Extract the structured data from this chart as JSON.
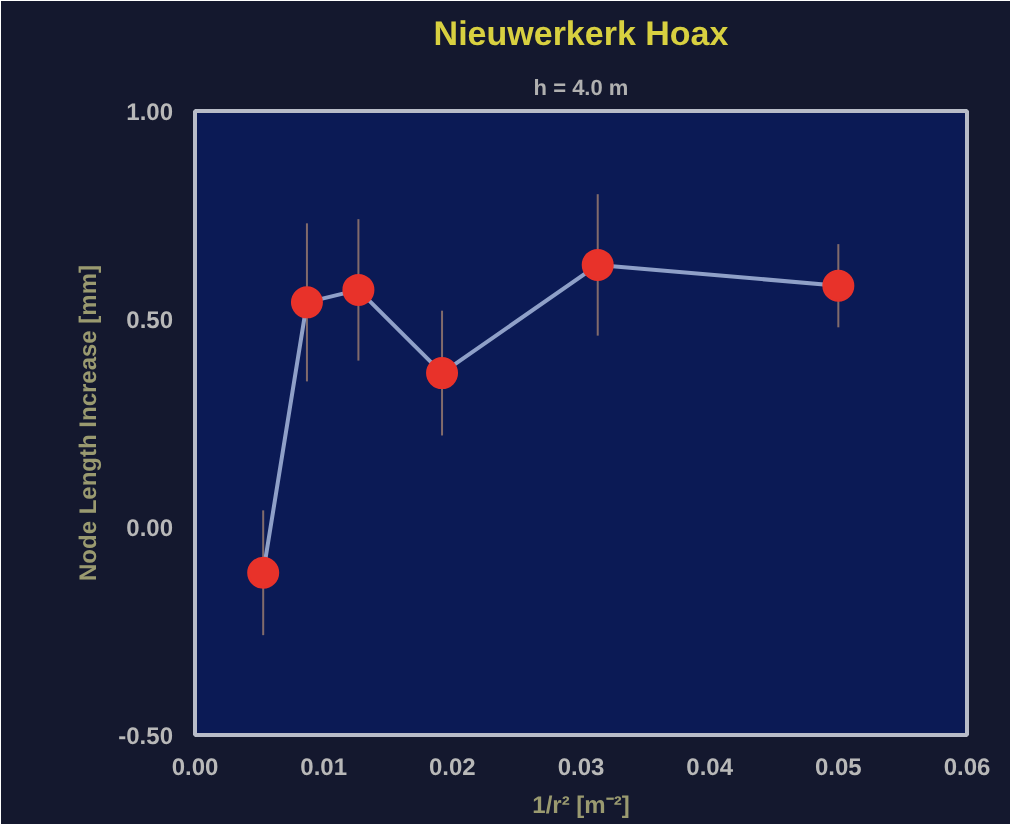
{
  "chart_data": {
    "type": "line",
    "title": "Nieuwerkerk Hoax",
    "subtitle": "h = 4.0 m",
    "xlabel": "1/r² [m⁻²]",
    "ylabel": "Node Length Increase [mm]",
    "x": [
      0.0053,
      0.0087,
      0.0127,
      0.0192,
      0.0313,
      0.05
    ],
    "series": [
      {
        "color": "#e8322a",
        "values": [
          -0.11,
          0.54,
          0.57,
          0.37,
          0.63,
          0.58
        ],
        "errors": [
          0.15,
          0.19,
          0.17,
          0.15,
          0.17,
          0.1
        ]
      }
    ],
    "xlim": [
      0.0,
      0.06
    ],
    "ylim": [
      -0.5,
      1.0
    ],
    "xticks": [
      {
        "value": 0.0,
        "label": "0.00"
      },
      {
        "value": 0.01,
        "label": "0.01"
      },
      {
        "value": 0.02,
        "label": "0.02"
      },
      {
        "value": 0.03,
        "label": "0.03"
      },
      {
        "value": 0.04,
        "label": "0.04"
      },
      {
        "value": 0.05,
        "label": "0.05"
      },
      {
        "value": 0.06,
        "label": "0.06"
      }
    ],
    "yticks": [
      {
        "value": -0.5,
        "label": "-0.50"
      },
      {
        "value": 0.0,
        "label": "0.00"
      },
      {
        "value": 0.5,
        "label": "0.50"
      },
      {
        "value": 1.0,
        "label": "1.00"
      }
    ],
    "grid": false,
    "marker": "circle",
    "line_style": "solid"
  }
}
